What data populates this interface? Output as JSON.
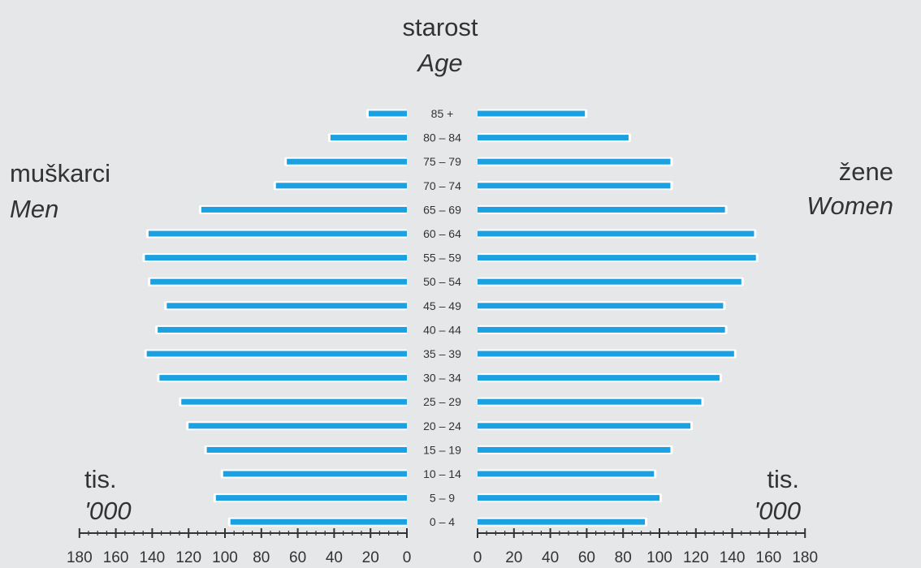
{
  "center_title": {
    "local": "starost",
    "english": "Age"
  },
  "left_title": {
    "local": "muškarci",
    "english": "Men"
  },
  "right_title": {
    "local": "žene",
    "english": "Women"
  },
  "left_unit": {
    "local": "tis.",
    "english": "'000"
  },
  "right_unit": {
    "local": "tis.",
    "english": "'000"
  },
  "colors": {
    "bar": "#1ba1e2",
    "halo": "#ffffff",
    "text": "#333333",
    "axis": "#333333"
  },
  "chart_data": {
    "type": "bar",
    "orientation": "horizontal-population-pyramid",
    "categories": [
      "85 +",
      "80 – 84",
      "75 – 79",
      "70 – 74",
      "65 – 69",
      "60 – 64",
      "55 – 59",
      "50 – 54",
      "45 – 49",
      "40 – 44",
      "35 – 39",
      "30 – 34",
      "25 – 29",
      "20 – 24",
      "15 – 19",
      "10 – 14",
      "5 – 9",
      "0 – 4"
    ],
    "series": [
      {
        "name": "muškarci",
        "values": [
          21,
          42,
          66,
          72,
          113,
          142,
          144,
          141,
          132,
          137,
          143,
          136,
          124,
          120,
          110,
          101,
          105,
          97
        ]
      },
      {
        "name": "žene",
        "values": [
          59,
          83,
          106,
          106,
          136,
          152,
          153,
          145,
          135,
          136,
          141,
          133,
          123,
          117,
          106,
          97,
          100,
          92
        ]
      }
    ],
    "x_ticks_left": [
      "180",
      "160",
      "140",
      "120",
      "100",
      "80",
      "60",
      "40",
      "20",
      "0"
    ],
    "x_ticks_right": [
      "0",
      "20",
      "40",
      "60",
      "80",
      "100",
      "120",
      "140",
      "160",
      "180"
    ],
    "xlim": [
      0,
      180
    ]
  }
}
